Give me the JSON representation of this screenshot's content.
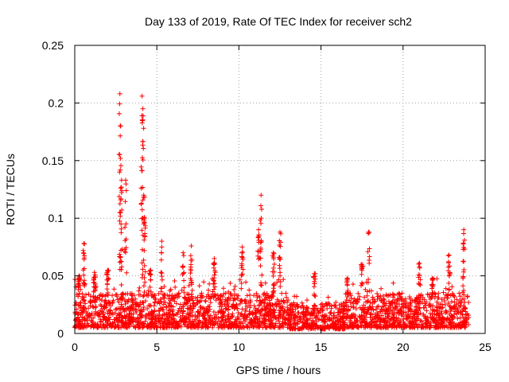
{
  "chart_data": {
    "type": "scatter",
    "title": "Day 133 of 2019, Rate Of TEC Index for receiver sch2",
    "xlabel": "GPS time / hours",
    "ylabel": "ROTI / TECUs",
    "xlim": [
      0,
      25
    ],
    "ylim": [
      0,
      0.25
    ],
    "x_ticks": [
      0,
      5,
      10,
      15,
      20,
      25
    ],
    "y_ticks": [
      0,
      0.05,
      0.1,
      0.15,
      0.2,
      0.25
    ],
    "x_tick_labels": [
      "0",
      "5",
      "10",
      "15",
      "20",
      "25"
    ],
    "y_tick_labels": [
      "0",
      "0.05",
      "0.1",
      "0.15",
      "0.2",
      "0.25"
    ],
    "grid": true,
    "marker": "+",
    "series": [
      {
        "name": "sch2",
        "color": "#ff0000",
        "x_range_hours": [
          0,
          24
        ],
        "baseline_range": [
          0.005,
          0.035
        ],
        "peaks": [
          {
            "x": 0.25,
            "y": 0.05
          },
          {
            "x": 0.55,
            "y": 0.078
          },
          {
            "x": 1.2,
            "y": 0.053
          },
          {
            "x": 2.0,
            "y": 0.055
          },
          {
            "x": 2.75,
            "y": 0.208
          },
          {
            "x": 2.8,
            "y": 0.18
          },
          {
            "x": 2.85,
            "y": 0.133
          },
          {
            "x": 3.1,
            "y": 0.133
          },
          {
            "x": 4.1,
            "y": 0.206
          },
          {
            "x": 4.15,
            "y": 0.195
          },
          {
            "x": 4.2,
            "y": 0.12
          },
          {
            "x": 4.25,
            "y": 0.1
          },
          {
            "x": 4.6,
            "y": 0.055
          },
          {
            "x": 5.3,
            "y": 0.08
          },
          {
            "x": 6.6,
            "y": 0.07
          },
          {
            "x": 7.1,
            "y": 0.076
          },
          {
            "x": 8.5,
            "y": 0.065
          },
          {
            "x": 10.2,
            "y": 0.075
          },
          {
            "x": 11.35,
            "y": 0.12
          },
          {
            "x": 11.2,
            "y": 0.09
          },
          {
            "x": 12.1,
            "y": 0.07
          },
          {
            "x": 12.5,
            "y": 0.088
          },
          {
            "x": 14.6,
            "y": 0.052
          },
          {
            "x": 16.6,
            "y": 0.048
          },
          {
            "x": 17.9,
            "y": 0.088
          },
          {
            "x": 17.5,
            "y": 0.06
          },
          {
            "x": 21.0,
            "y": 0.061
          },
          {
            "x": 21.8,
            "y": 0.048
          },
          {
            "x": 22.8,
            "y": 0.068
          },
          {
            "x": 23.7,
            "y": 0.09
          }
        ]
      }
    ]
  }
}
